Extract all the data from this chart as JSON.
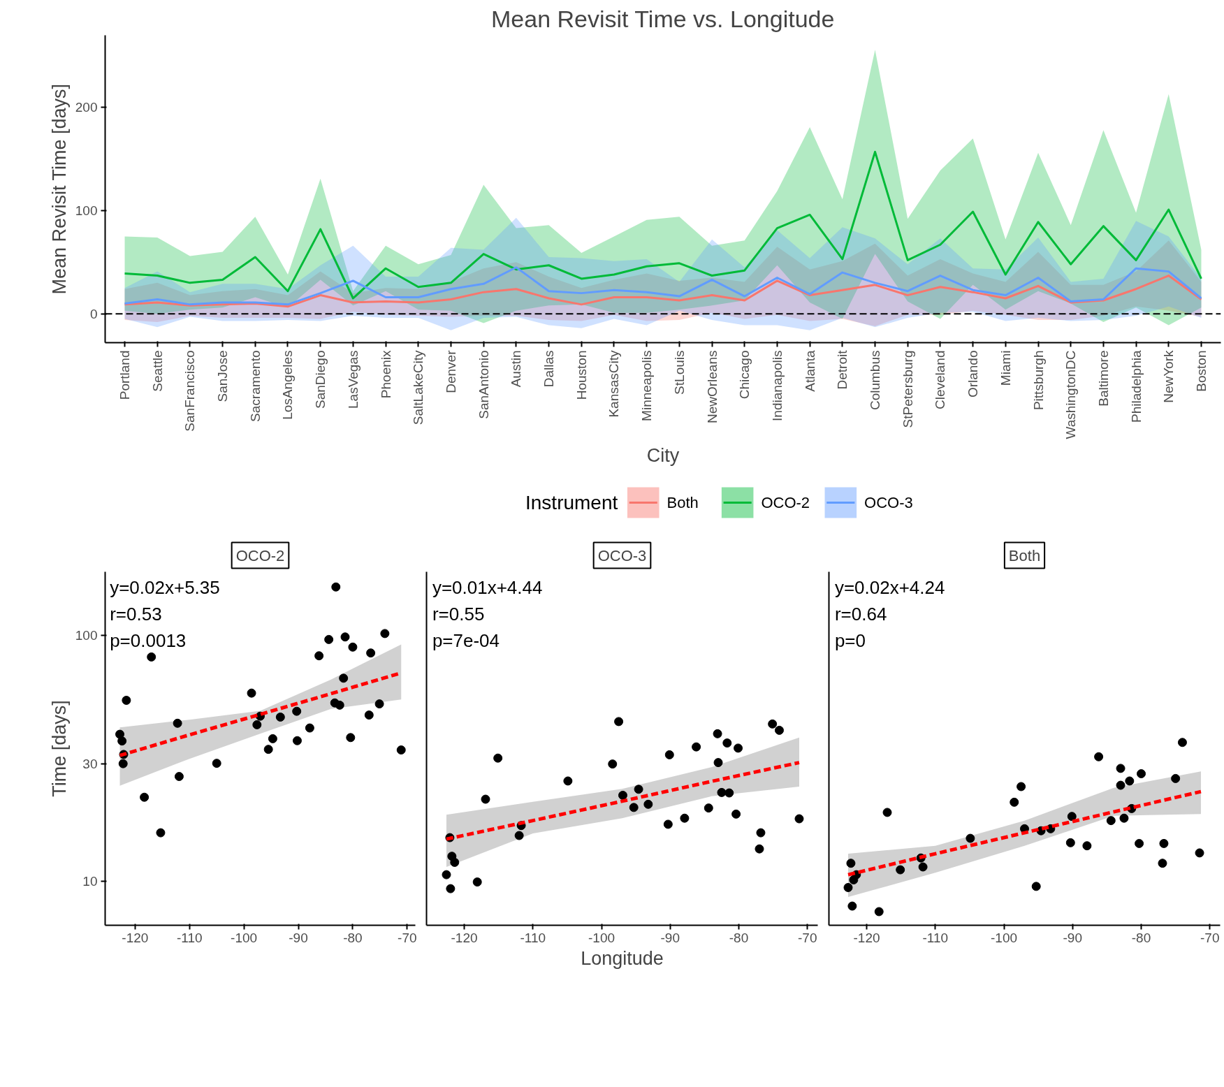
{
  "chart_data": [
    {
      "type": "line",
      "title": "Mean Revisit Time vs. Longitude",
      "xlabel": "City",
      "ylabel": "Mean Revisit Time [days]",
      "legend_title": "Instrument",
      "legend": "bottom",
      "grid": false,
      "categories": [
        "Portland",
        "Seattle",
        "SanFrancisco",
        "SanJose",
        "Sacramento",
        "LosAngeles",
        "SanDiego",
        "LasVegas",
        "Phoenix",
        "SaltLakeCity",
        "Denver",
        "SanAntonio",
        "Austin",
        "Dallas",
        "Houston",
        "KansasCity",
        "Minneapolis",
        "StLouis",
        "NewOrleans",
        "Chicago",
        "Indianapolis",
        "Atlanta",
        "Detroit",
        "Columbus",
        "StPetersburg",
        "Cleveland",
        "Orlando",
        "Miami",
        "Pittsburgh",
        "WashingtonDC",
        "Baltimore",
        "Philadelphia",
        "NewYork",
        "Boston"
      ],
      "ylim": [
        -28,
        270
      ],
      "yticks": [
        0,
        100,
        200
      ],
      "ref_lines": [
        {
          "axis": "y",
          "value": 0,
          "line_style": "dashed",
          "color": "#000000"
        }
      ],
      "series": [
        {
          "name": "Both",
          "color": "#f8766d",
          "values": [
            9,
            11,
            8,
            9,
            10,
            7,
            18,
            11,
            12,
            11,
            14,
            21,
            24,
            15,
            9,
            16,
            16,
            13,
            18,
            13,
            32,
            18,
            23,
            28,
            18,
            26,
            21,
            15,
            27,
            11,
            13,
            24,
            37,
            14
          ],
          "upper": [
            24,
            30,
            18,
            22,
            24,
            18,
            41,
            20,
            25,
            24,
            31,
            44,
            50,
            36,
            25,
            33,
            39,
            32,
            35,
            31,
            65,
            43,
            51,
            68,
            37,
            53,
            39,
            31,
            60,
            28,
            28,
            41,
            71,
            31
          ],
          "lower": [
            -6,
            -8,
            -2,
            -4,
            -4,
            -4,
            -5,
            2,
            -1,
            -2,
            -3,
            -2,
            -2,
            -6,
            -7,
            -1,
            -7,
            -6,
            1,
            -5,
            -1,
            -7,
            -5,
            -12,
            -1,
            -1,
            3,
            -1,
            -6,
            -6,
            -2,
            7,
            3,
            -3
          ]
        },
        {
          "name": "OCO-2",
          "color": "#00ba38",
          "values": [
            39,
            37,
            30,
            33,
            55,
            22,
            82,
            15,
            44,
            26,
            30,
            58,
            43,
            47,
            34,
            38,
            46,
            49,
            37,
            42,
            83,
            96,
            53,
            157,
            52,
            67,
            99,
            38,
            89,
            48,
            85,
            52,
            101,
            34
          ],
          "upper": [
            75,
            74,
            56,
            60,
            94,
            38,
            131,
            22,
            66,
            48,
            57,
            125,
            83,
            86,
            59,
            75,
            91,
            94,
            66,
            71,
            119,
            181,
            111,
            256,
            92,
            139,
            170,
            72,
            156,
            86,
            178,
            98,
            213,
            62
          ],
          "lower": [
            3,
            0,
            4,
            6,
            16,
            6,
            33,
            8,
            22,
            4,
            3,
            -9,
            3,
            8,
            9,
            1,
            1,
            4,
            8,
            13,
            47,
            11,
            -5,
            58,
            12,
            -5,
            28,
            4,
            22,
            10,
            -8,
            6,
            -11,
            6
          ]
        },
        {
          "name": "OCO-3",
          "color": "#619cff",
          "values": [
            10,
            14,
            9,
            11,
            11,
            9,
            20,
            32,
            16,
            16,
            24,
            29,
            45,
            22,
            20,
            23,
            21,
            17,
            33,
            17,
            35,
            19,
            40,
            30,
            22,
            37,
            23,
            18,
            35,
            12,
            14,
            44,
            41,
            15
          ],
          "upper": [
            25,
            41,
            21,
            29,
            29,
            24,
            47,
            66,
            36,
            36,
            64,
            62,
            93,
            55,
            54,
            51,
            53,
            31,
            72,
            45,
            81,
            54,
            84,
            73,
            48,
            73,
            44,
            43,
            74,
            31,
            34,
            90,
            75,
            34
          ],
          "lower": [
            -5,
            -13,
            -3,
            -7,
            -7,
            -6,
            -7,
            -2,
            -4,
            -4,
            -16,
            -4,
            -3,
            -11,
            -14,
            -5,
            -11,
            3,
            -6,
            -11,
            -11,
            -16,
            -4,
            -13,
            -4,
            1,
            2,
            -7,
            -4,
            -7,
            -6,
            -2,
            7,
            -4
          ]
        }
      ]
    },
    {
      "type": "scatter",
      "title": "OCO-2",
      "ylabel": "Time [days]",
      "log": "y",
      "grid": false,
      "marker": "circle",
      "xlim": [
        -125.5,
        -68.5
      ],
      "xticks": [
        -120,
        -110,
        -100,
        -90,
        -80,
        -70
      ],
      "ylim": [
        6.6,
        181
      ],
      "yticks": [
        10,
        30,
        100
      ],
      "annotations": [
        "y=0.02x+5.35",
        "r=0.53",
        "p=0.0013"
      ],
      "series": [
        {
          "type": "scatter",
          "color": "#000000",
          "x": [
            -83.1,
            -117.0,
            -121.6,
            -122.8,
            -122.4,
            -122.1,
            -122.2,
            -118.3,
            -115.3,
            -112.2,
            -111.9,
            -105.0,
            -98.6,
            -97.0,
            -97.6,
            -93.3,
            -94.7,
            -95.5,
            -90.3,
            -90.2,
            -87.9,
            -86.2,
            -84.4,
            -83.3,
            -82.4,
            -81.7,
            -81.4,
            -80.0,
            -80.4,
            -77.0,
            -76.7,
            -75.1,
            -74.1,
            -71.1
          ],
          "values": [
            157,
            81.5,
            54.3,
            39.5,
            37.1,
            32.7,
            30.0,
            21.9,
            15.7,
            43.8,
            26.6,
            30.1,
            58.1,
            46.8,
            43.2,
            46.4,
            37.9,
            34.3,
            49.0,
            37.2,
            41.9,
            82.4,
            96,
            53.0,
            51.9,
            66.8,
            98.3,
            89.4,
            38.3,
            47.3,
            84.6,
            52.5,
            101.5,
            34.1
          ]
        },
        {
          "type": "line",
          "marker": "none",
          "color": "#ff0000",
          "line_style": "dashed",
          "x": [
            -122.8,
            -110,
            -97,
            -84,
            -71.1
          ],
          "values": [
            32.4,
            39.3,
            47.6,
            57.8,
            70.2
          ],
          "lower": [
            24.4,
            31.4,
            39.7,
            50.1,
            54.7
          ],
          "upper": [
            42.1,
            45.3,
            49.2,
            66,
            91.6
          ]
        }
      ]
    },
    {
      "type": "scatter",
      "title": "OCO-3",
      "xlabel": "Longitude",
      "log": "y",
      "grid": false,
      "marker": "circle",
      "tick_labels": "x",
      "xlim": [
        -125.5,
        -68.5
      ],
      "xticks": [
        -120,
        -110,
        -100,
        -90,
        -80,
        -70
      ],
      "ylim": [
        6.6,
        181
      ],
      "yticks": [
        10,
        30,
        100
      ],
      "annotations": [
        "y=0.01x+4.44",
        "r=0.55",
        "p=7e-04"
      ],
      "series": [
        {
          "type": "scatter",
          "color": "#000000",
          "x": [
            -122.1,
            -121.8,
            -121.4,
            -122.6,
            -122.0,
            -118.1,
            -116.9,
            -115.1,
            -111.7,
            -112.0,
            -104.9,
            -98.4,
            -97.5,
            -96.9,
            -95.3,
            -94.6,
            -93.2,
            -90.3,
            -90.1,
            -87.9,
            -86.2,
            -84.4,
            -83.1,
            -83.0,
            -82.5,
            -81.4,
            -81.7,
            -80.1,
            -80.4,
            -76.8,
            -77.0,
            -75.1,
            -74.1,
            -71.2
          ],
          "values": [
            15.0,
            12.6,
            11.9,
            10.6,
            9.3,
            9.9,
            21.5,
            31.6,
            16.8,
            15.3,
            25.5,
            29.9,
            44.5,
            22.3,
            19.9,
            23.6,
            20.5,
            17.0,
            32.6,
            18.0,
            35.1,
            19.8,
            39.7,
            30.3,
            22.9,
            22.8,
            36.4,
            34.7,
            18.7,
            15.7,
            13.5,
            43.5,
            41.0,
            17.9
          ]
        },
        {
          "type": "line",
          "marker": "none",
          "color": "#ff0000",
          "line_style": "dashed",
          "x": [
            -122.6,
            -110,
            -97,
            -84,
            -71.2
          ],
          "values": [
            14.8,
            17.6,
            21.1,
            25.4,
            30.3
          ],
          "lower": [
            11.4,
            15.6,
            18.0,
            22.1,
            24.2
          ],
          "upper": [
            18.6,
            21.0,
            23.7,
            29.0,
            38.3
          ]
        }
      ]
    },
    {
      "type": "scatter",
      "title": "Both",
      "log": "y",
      "grid": false,
      "marker": "circle",
      "tick_labels": "x",
      "xlim": [
        -125.5,
        -68.5
      ],
      "xticks": [
        -120,
        -110,
        -100,
        -90,
        -80,
        -70
      ],
      "ylim": [
        6.6,
        181
      ],
      "yticks": [
        10,
        30,
        100
      ],
      "annotations": [
        "y=0.02x+4.24",
        "r=0.64",
        "p=0"
      ],
      "series": [
        {
          "type": "scatter",
          "color": "#000000",
          "x": [
            -122.3,
            -121.5,
            -121.9,
            -122.7,
            -122.1,
            -118.2,
            -117.0,
            -115.1,
            -112.1,
            -111.8,
            -104.9,
            -98.5,
            -97.5,
            -97.0,
            -95.3,
            -94.6,
            -93.2,
            -90.1,
            -90.3,
            -87.9,
            -86.2,
            -84.4,
            -83.0,
            -83.0,
            -81.7,
            -82.5,
            -81.4,
            -80.0,
            -80.3,
            -76.7,
            -76.9,
            -75.0,
            -74.0,
            -71.5
          ],
          "values": [
            11.8,
            10.6,
            10.1,
            9.4,
            7.9,
            7.5,
            19.0,
            11.1,
            12.4,
            11.4,
            14.9,
            20.9,
            24.2,
            16.3,
            9.5,
            16.0,
            16.3,
            18.3,
            14.3,
            13.9,
            32.0,
            17.6,
            28.7,
            24.5,
            25.5,
            18.0,
            19.7,
            27.3,
            14.2,
            14.2,
            11.8,
            26.1,
            36.6,
            13.0
          ]
        },
        {
          "type": "line",
          "marker": "none",
          "color": "#ff0000",
          "line_style": "dashed",
          "x": [
            -122.7,
            -110,
            -97,
            -84,
            -71.3
          ],
          "values": [
            10.6,
            12.9,
            15.7,
            19.1,
            23.1
          ],
          "lower": [
            8.6,
            10.8,
            13.9,
            18.4,
            18.7
          ],
          "upper": [
            12.9,
            13.9,
            17.6,
            23.9,
            27.9
          ]
        }
      ]
    }
  ]
}
